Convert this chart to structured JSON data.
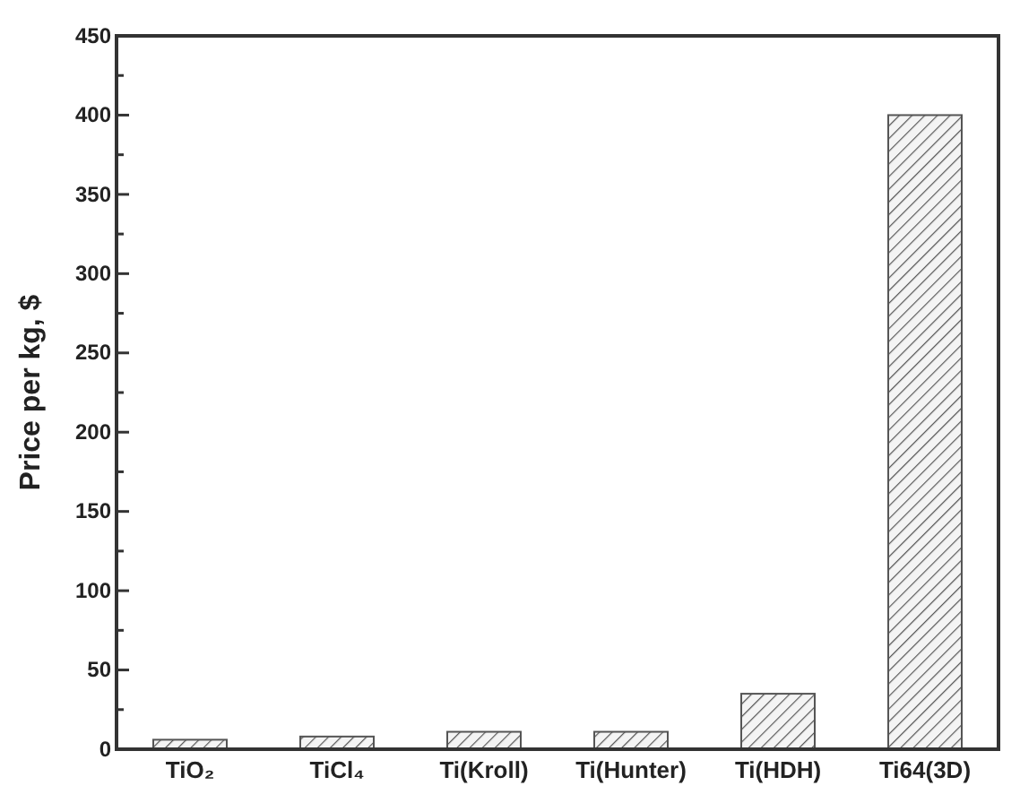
{
  "chart_data": {
    "type": "bar",
    "ylabel": "Price per kg, $",
    "categories": [
      "TiO₂",
      "TiCl₄",
      "Ti(Kroll)",
      "Ti(Hunter)",
      "Ti(HDH)",
      "Ti64(3D)"
    ],
    "values": [
      6,
      8,
      11,
      11,
      35,
      400
    ],
    "color": "#555555",
    "ylim": [
      0,
      450
    ],
    "yticks": [
      0,
      {
        "value": 25,
        "label": null
      },
      50,
      {
        "value": 75,
        "label": null
      },
      100,
      {
        "value": 125,
        "label": null
      },
      150,
      {
        "value": 175,
        "label": null
      },
      200,
      {
        "value": 225,
        "label": null
      },
      250,
      {
        "value": 275,
        "label": null
      },
      300,
      {
        "value": 325,
        "label": null
      },
      350,
      {
        "value": 375,
        "label": null
      },
      400,
      {
        "value": 425,
        "label": null
      },
      450
    ],
    "grid": false
  }
}
